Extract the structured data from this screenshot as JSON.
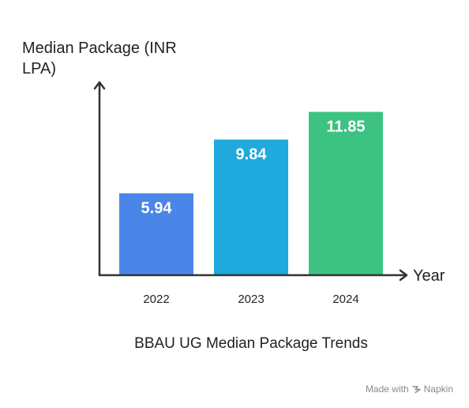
{
  "chart_data": {
    "type": "bar",
    "categories": [
      "2022",
      "2023",
      "2024"
    ],
    "values": [
      5.94,
      9.84,
      11.85
    ],
    "data_labels": [
      "5.94",
      "9.84",
      "11.85"
    ],
    "title": "BBAU UG Median Package Trends",
    "xlabel": "Year",
    "ylabel_lines": [
      "Median Package (INR",
      "LPA)"
    ],
    "ylim": [
      0,
      14
    ],
    "grid": false,
    "legend": "none",
    "colors": [
      "#4a86e8",
      "#1fa9dc",
      "#3cc382"
    ]
  },
  "watermark": {
    "prefix": "Made with",
    "brand": "Napkin",
    "icon": "napkin-logo-icon"
  }
}
